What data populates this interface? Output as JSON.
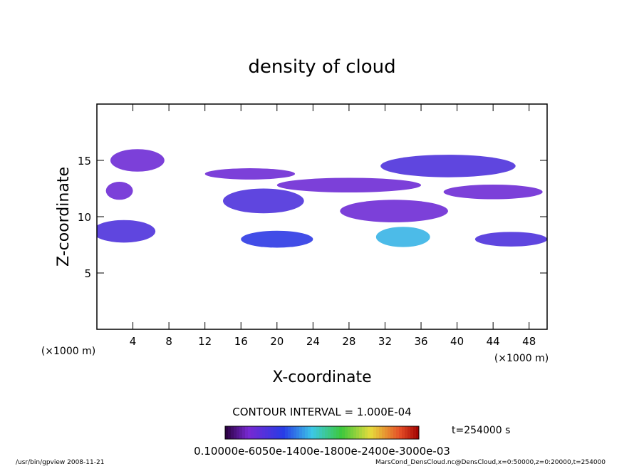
{
  "chart_data": {
    "type": "contour",
    "title": "density of cloud",
    "x_label": "X-coordinate",
    "y_label": "Z-coordinate",
    "x_unit": "(×1000 m)",
    "y_unit": "(×1000 m)",
    "xlim": [
      0,
      50
    ],
    "ylim": [
      0,
      20
    ],
    "xticks": [
      4,
      8,
      12,
      16,
      20,
      24,
      28,
      32,
      36,
      40,
      44,
      48
    ],
    "yticks": [
      5,
      10,
      15
    ],
    "clim": [
      0,
      0.0007
    ],
    "patches": [
      {
        "x": 4.5,
        "z": 15,
        "width": 6,
        "height": 2,
        "value": 0.0001
      },
      {
        "x": 3,
        "z": 8.7,
        "width": 7,
        "height": 2,
        "value": 0.00015
      },
      {
        "x": 2.5,
        "z": 12.3,
        "width": 3,
        "height": 1.6,
        "value": 0.0001
      },
      {
        "x": 17,
        "z": 13.8,
        "width": 10,
        "height": 1,
        "value": 0.0001
      },
      {
        "x": 18.5,
        "z": 11.4,
        "width": 9,
        "height": 2.2,
        "value": 0.00015
      },
      {
        "x": 20,
        "z": 8,
        "width": 8,
        "height": 1.5,
        "value": 0.0002
      },
      {
        "x": 28,
        "z": 12.8,
        "width": 16,
        "height": 1.3,
        "value": 0.0001
      },
      {
        "x": 33,
        "z": 10.5,
        "width": 12,
        "height": 2,
        "value": 0.0001
      },
      {
        "x": 34,
        "z": 8.2,
        "width": 6,
        "height": 1.8,
        "value": 0.0003
      },
      {
        "x": 39,
        "z": 14.5,
        "width": 15,
        "height": 2,
        "value": 0.00015
      },
      {
        "x": 44,
        "z": 12.2,
        "width": 11,
        "height": 1.3,
        "value": 0.0001
      },
      {
        "x": 46,
        "z": 8,
        "width": 8,
        "height": 1.3,
        "value": 0.00015
      }
    ],
    "contour_interval": "CONTOUR INTERVAL = 1.000E-04",
    "time_label": "t=254000 s",
    "colorbar_labels": "0.10000e-6050e-1400e-1800e-2400e-3000e-03",
    "footer_left": "/usr/bin/gpview   2008-11-21",
    "footer_right": "MarsCond_DensCloud.nc@DensCloud,x=0:50000,z=0:20000,t=254000"
  }
}
